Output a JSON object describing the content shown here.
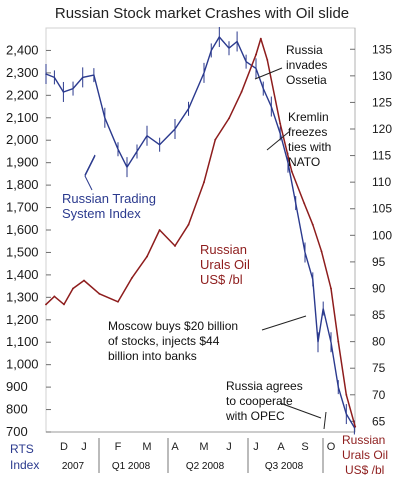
{
  "chart_data": {
    "type": "line",
    "title": "Russian Stock market Crashes with Oil slide",
    "left_axis": {
      "ticks": [
        "2,400",
        "2,300",
        "2,200",
        "2,100",
        "2,000",
        "1,900",
        "1,800",
        "1,700",
        "1,600",
        "1,500",
        "1,400",
        "1,300",
        "1,200",
        "1,100",
        "1,000",
        "900",
        "800",
        "700"
      ],
      "ylim": [
        700,
        2500
      ]
    },
    "right_axis": {
      "ticks": [
        "135",
        "130",
        "125",
        "120",
        "115",
        "110",
        "105",
        "100",
        "95",
        "90",
        "85",
        "80",
        "75",
        "70",
        "65"
      ],
      "ylim": [
        63,
        139
      ]
    },
    "x_axis": {
      "months": [
        "D",
        "J",
        "F",
        "M",
        "A",
        "M",
        "J",
        "J",
        "A",
        "S",
        "O"
      ],
      "periods": [
        "2007",
        "Q1 2008",
        "Q2 2008",
        "Q3 2008"
      ],
      "left_label_line1": "RTS",
      "left_label_line2": "Index",
      "right_label_line1": "Russian",
      "right_label_line2": "Urals Oil",
      "right_label_line3": "US$ /bl"
    },
    "series": [
      {
        "name": "Russian Trading System Index",
        "axis": "left",
        "color": "#2b3a8e",
        "points": [
          [
            "Nov 01",
            2295
          ],
          [
            "Nov 15",
            2280
          ],
          [
            "Nov 30",
            2215
          ],
          [
            "Dec 15",
            2230
          ],
          [
            "Dec 30",
            2280
          ],
          [
            "Jan 10",
            2290
          ],
          [
            "Jan 20",
            2100
          ],
          [
            "Feb 01",
            1960
          ],
          [
            "Feb 10",
            1880
          ],
          [
            "Feb 20",
            1950
          ],
          [
            "Mar 01",
            2020
          ],
          [
            "Mar 15",
            1980
          ],
          [
            "Apr 01",
            2050
          ],
          [
            "Apr 15",
            2140
          ],
          [
            "May 01",
            2300
          ],
          [
            "May 10",
            2400
          ],
          [
            "May 20",
            2460
          ],
          [
            "Jun 01",
            2410
          ],
          [
            "Jun 10",
            2440
          ],
          [
            "Jun 20",
            2350
          ],
          [
            "Jul 01",
            2320
          ],
          [
            "Jul 10",
            2230
          ],
          [
            "Jul 20",
            2150
          ],
          [
            "Jul 31",
            2030
          ],
          [
            "Aug 10",
            1900
          ],
          [
            "Aug 20",
            1720
          ],
          [
            "Sep 01",
            1500
          ],
          [
            "Sep 10",
            1380
          ],
          [
            "Sep 16",
            1100
          ],
          [
            "Sep 22",
            1250
          ],
          [
            "Oct 01",
            1100
          ],
          [
            "Oct 10",
            900
          ],
          [
            "Oct 20",
            780
          ],
          [
            "Oct 30",
            720
          ]
        ]
      },
      {
        "name": "Russian Urals Oil US$ /bl",
        "axis": "right",
        "color": "#8e1d1d",
        "points": [
          [
            "Nov 01",
            87
          ],
          [
            "Nov 15",
            88.5
          ],
          [
            "Dec 01",
            87
          ],
          [
            "Dec 15",
            90
          ],
          [
            "Jan 01",
            91.5
          ],
          [
            "Jan 15",
            89
          ],
          [
            "Feb 01",
            87.5
          ],
          [
            "Feb 15",
            92
          ],
          [
            "Mar 01",
            96
          ],
          [
            "Mar 15",
            101
          ],
          [
            "Apr 01",
            98
          ],
          [
            "Apr 15",
            102
          ],
          [
            "May 01",
            110
          ],
          [
            "May 15",
            118
          ],
          [
            "Jun 01",
            122
          ],
          [
            "Jun 15",
            127
          ],
          [
            "Jul 01",
            134
          ],
          [
            "Jul 07",
            137
          ],
          [
            "Jul 15",
            133
          ],
          [
            "Jul 31",
            121
          ],
          [
            "Aug 15",
            112
          ],
          [
            "Aug 31",
            106
          ],
          [
            "Sep 10",
            102
          ],
          [
            "Sep 20",
            97
          ],
          [
            "Oct 01",
            90
          ],
          [
            "Oct 10",
            80
          ],
          [
            "Oct 20",
            70
          ],
          [
            "Oct 31",
            64
          ]
        ]
      }
    ],
    "annotations": [
      {
        "lines": [
          "Russia",
          "invades",
          "Ossetia"
        ],
        "color": "#111111"
      },
      {
        "lines": [
          "Kremlin",
          "freezes",
          "ties with",
          "NATO"
        ],
        "color": "#111111"
      },
      {
        "lines": [
          "Russian Trading",
          "System Index"
        ],
        "color": "#2b3a8e"
      },
      {
        "lines": [
          "Russian",
          "Urals Oil",
          "US$ /bl"
        ],
        "color": "#8e1d1d"
      },
      {
        "lines": [
          "Moscow buys $20 billion",
          "of stocks, injects $44",
          "billion into banks"
        ],
        "color": "#111111"
      },
      {
        "lines": [
          "Russia agrees",
          "to cooperate",
          "with OPEC"
        ],
        "color": "#111111"
      }
    ]
  }
}
